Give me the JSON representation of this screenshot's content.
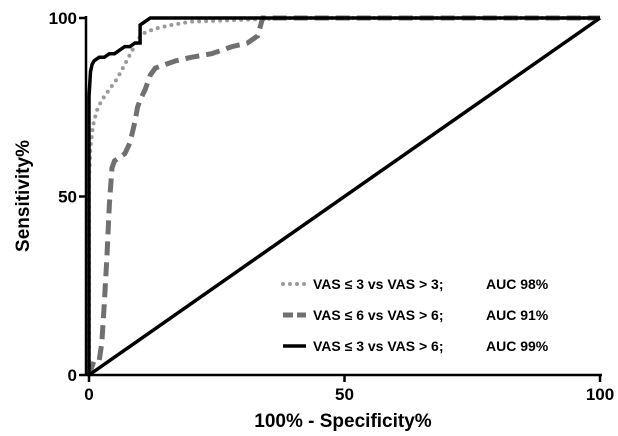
{
  "chart_data": {
    "type": "line",
    "xlabel": "100% - Specificity%",
    "ylabel": "Sensitivity%",
    "xlim": [
      0,
      100
    ],
    "ylim": [
      0,
      100
    ],
    "x_ticks": [
      "0",
      "50",
      "100"
    ],
    "y_ticks": [
      "0",
      "50",
      "100"
    ],
    "grid": false,
    "legend_position": "bottom-right",
    "series": [
      {
        "name": "VAS  ≤ 3 vs VAS > 3;",
        "auc": "AUC 98%",
        "style": "dotted",
        "color": "#9a9a9a",
        "x": [
          0,
          0,
          0.3,
          0.8,
          1.5,
          2.5,
          4,
          5.5,
          7,
          8.5,
          9.5,
          11,
          13,
          16,
          20,
          30,
          40,
          60,
          80,
          100
        ],
        "y": [
          0,
          55,
          64,
          70,
          74,
          77,
          80,
          83,
          87,
          91,
          94,
          96,
          97,
          98,
          99,
          99.5,
          100,
          100,
          100,
          100
        ]
      },
      {
        "name": "VAS  ≤ 6 vs VAS > 6;",
        "auc": "AUC 91%",
        "style": "dashed",
        "color": "#707070",
        "x": [
          0,
          1,
          2,
          2.5,
          3,
          3.5,
          4,
          4.5,
          5,
          6,
          7,
          8,
          9,
          9.5,
          10,
          11,
          12,
          13,
          15,
          17,
          20,
          24,
          28,
          31,
          33,
          34,
          40,
          60,
          80,
          100
        ],
        "y": [
          0,
          4,
          4,
          9,
          20,
          33,
          48,
          58,
          60,
          61,
          62,
          65,
          71,
          75,
          77,
          80,
          84,
          86,
          87,
          88,
          89,
          90,
          92,
          93,
          95,
          100,
          100,
          100,
          100,
          100
        ]
      },
      {
        "name": "VAS  ≤ 3 vs VAS > 6;",
        "auc": "AUC 99%",
        "style": "solid",
        "color": "#000000",
        "x": [
          0,
          0,
          0,
          0.3,
          0.6,
          1,
          2,
          3,
          4,
          5,
          6,
          7,
          8,
          9,
          10,
          10,
          12,
          20,
          40,
          60,
          80,
          100
        ],
        "y": [
          0,
          60,
          78,
          85,
          87,
          88,
          89,
          89,
          90,
          90,
          91,
          92,
          92,
          93,
          93,
          98,
          100,
          100,
          100,
          100,
          100,
          100
        ]
      },
      {
        "name": "",
        "style": "solid",
        "color": "#000000",
        "x": [
          0,
          100
        ],
        "y": [
          0,
          100
        ]
      }
    ]
  }
}
